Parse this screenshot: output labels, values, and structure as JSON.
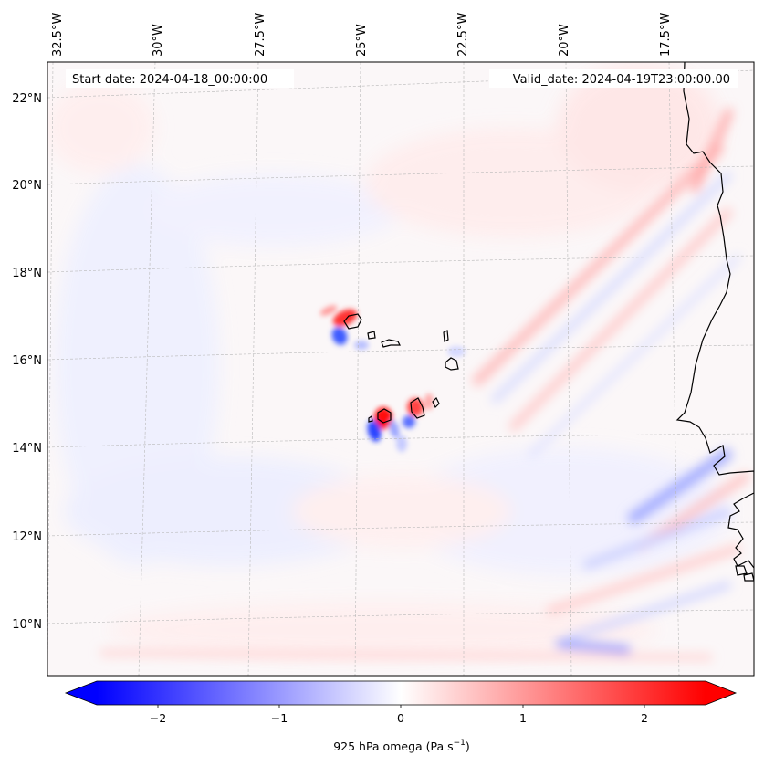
{
  "map": {
    "start_label": "Start date: 2024-04-18_00:00:00",
    "valid_label": "Valid_date: 2024-04-19T23:00:00.00",
    "longitude_ticks": [
      "32.5°W",
      "30°W",
      "27.5°W",
      "25°W",
      "22.5°W",
      "20°W",
      "17.5°W"
    ],
    "latitude_ticks": [
      "22°N",
      "20°N",
      "18°N",
      "16°N",
      "14°N",
      "12°N",
      "10°N"
    ],
    "gridlines": true,
    "projection": "Lambert conformal (curved graticule)",
    "coastline_color": "#000000"
  },
  "colorbar": {
    "label_text": "925 hPa omega (Pa s",
    "label_superscript": "−1",
    "label_close": ")",
    "ticks": [
      "−2",
      "−1",
      "0",
      "1",
      "2"
    ],
    "range": [
      -2.7,
      2.7
    ],
    "extend": "both",
    "cmap": "bwr",
    "colors": {
      "low": "#0000ff",
      "mid": "#ffffff",
      "high": "#ff0000"
    }
  }
}
